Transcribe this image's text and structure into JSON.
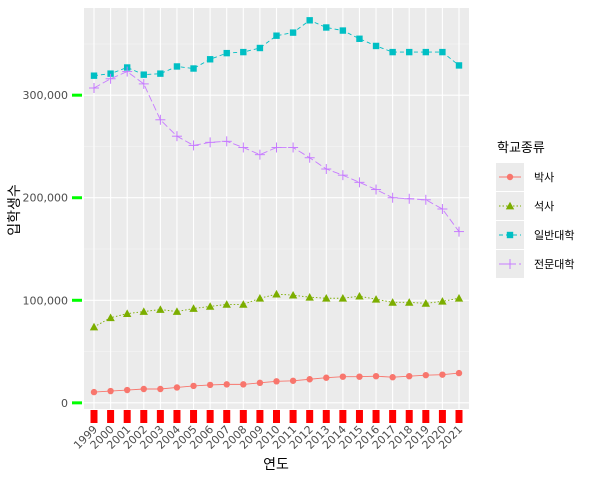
{
  "chart_data": {
    "type": "line",
    "title": "",
    "xlabel": "연도",
    "ylabel": "입학생수",
    "x": [
      1999,
      2000,
      2001,
      2002,
      2003,
      2004,
      2005,
      2006,
      2007,
      2008,
      2009,
      2010,
      2011,
      2012,
      2013,
      2014,
      2015,
      2016,
      2017,
      2018,
      2019,
      2020,
      2021
    ],
    "x_tick_labels": [
      "1999",
      "2000",
      "2001",
      "2002",
      "2003",
      "2004",
      "2005",
      "2006",
      "2007",
      "2008",
      "2009",
      "2010",
      "2011",
      "2012",
      "2013",
      "2014",
      "2015",
      "2016",
      "2017",
      "2018",
      "2019",
      "2020",
      "2021"
    ],
    "y_ticks": [
      0,
      100000,
      200000,
      300000
    ],
    "y_tick_labels": [
      "0",
      "100,000",
      "200,000",
      "300,000"
    ],
    "ylim": [
      -6000,
      385000
    ],
    "grid": true,
    "legend": {
      "title": "학교종류",
      "position": "right"
    },
    "series": [
      {
        "name": "박사",
        "color": "#F8766D",
        "marker": "circle",
        "dash": "solid",
        "values": [
          10500,
          11500,
          12500,
          13500,
          13500,
          15000,
          16500,
          17500,
          18000,
          18000,
          19500,
          21000,
          21500,
          23000,
          24500,
          25500,
          25500,
          26000,
          25000,
          26000,
          27000,
          27500,
          29000
        ]
      },
      {
        "name": "석사",
        "color": "#7CAE00",
        "marker": "triangle",
        "dash": "dotted",
        "values": [
          74000,
          83000,
          87000,
          89000,
          91000,
          89000,
          92000,
          94000,
          96000,
          96000,
          102000,
          106000,
          105000,
          103000,
          102000,
          102000,
          104000,
          101000,
          98000,
          98000,
          97000,
          99000,
          102000
        ]
      },
      {
        "name": "일반대학",
        "color": "#00BFC4",
        "marker": "square",
        "dash": "dashed",
        "values": [
          319000,
          321000,
          327000,
          320000,
          321000,
          328000,
          326000,
          335000,
          341000,
          342000,
          346000,
          358000,
          361000,
          373000,
          366000,
          363000,
          355000,
          348000,
          342000,
          342000,
          342000,
          342000,
          329000
        ]
      },
      {
        "name": "전문대학",
        "color": "#C77CFF",
        "marker": "plus",
        "dash": "longdash",
        "values": [
          307000,
          316000,
          323000,
          311000,
          276000,
          260000,
          251000,
          254000,
          255000,
          249000,
          242000,
          249000,
          249000,
          239000,
          228000,
          222000,
          215000,
          208000,
          200000,
          199000,
          198000,
          189000,
          167000
        ]
      }
    ]
  }
}
